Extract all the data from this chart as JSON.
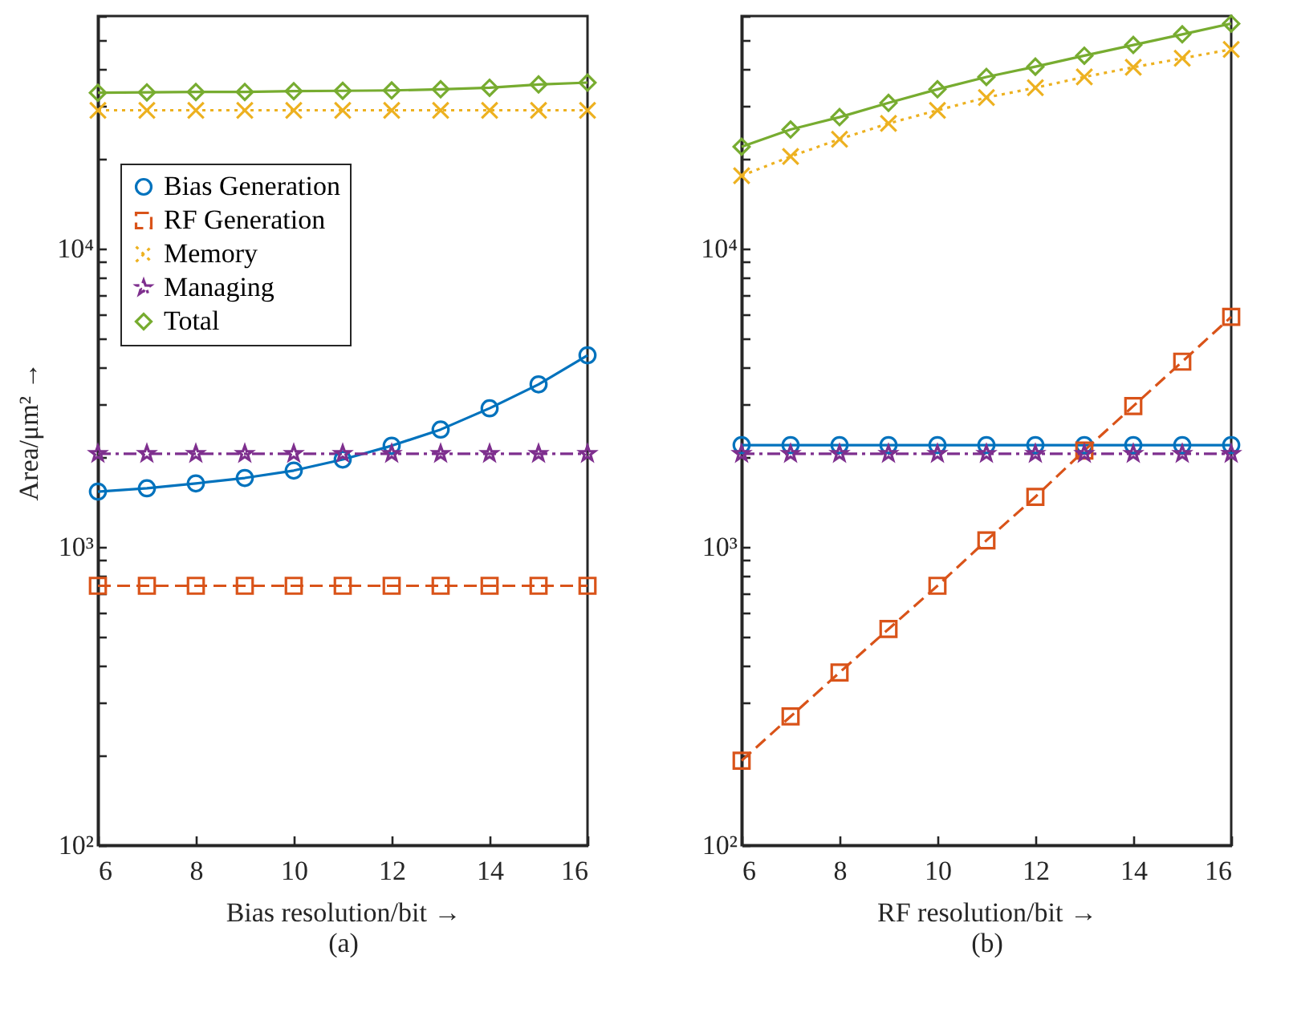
{
  "chart_data": [
    {
      "type": "line",
      "xlabel": "Bias resolution/bit →",
      "ylabel": "Area/μm² →",
      "annotations": [
        "(a)"
      ],
      "log": "y",
      "legend": "top left",
      "grid": false,
      "x": [
        6,
        7,
        8,
        9,
        10,
        11,
        12,
        13,
        14,
        15,
        16
      ],
      "xlim": [
        6,
        16
      ],
      "xticks": [
        6,
        8,
        10,
        12,
        14,
        16
      ],
      "ylim": [
        100,
        60000
      ],
      "yticks": [
        {
          "value": 100,
          "label": "10²"
        },
        {
          "value": 200,
          "label": null
        },
        {
          "value": 300,
          "label": null
        },
        {
          "value": 400,
          "label": null
        },
        {
          "value": 500,
          "label": null
        },
        {
          "value": 600,
          "label": null
        },
        {
          "value": 700,
          "label": null
        },
        {
          "value": 800,
          "label": null
        },
        {
          "value": 900,
          "label": null
        },
        {
          "value": 1000,
          "label": "10³"
        },
        {
          "value": 2000,
          "label": null
        },
        {
          "value": 3000,
          "label": null
        },
        {
          "value": 4000,
          "label": null
        },
        {
          "value": 5000,
          "label": null
        },
        {
          "value": 6000,
          "label": null
        },
        {
          "value": 7000,
          "label": null
        },
        {
          "value": 8000,
          "label": null
        },
        {
          "value": 9000,
          "label": null
        },
        {
          "value": 10000,
          "label": "10⁴"
        },
        {
          "value": 20000,
          "label": null
        },
        {
          "value": 30000,
          "label": null
        },
        {
          "value": 40000,
          "label": null
        },
        {
          "value": 50000,
          "label": null
        },
        {
          "value": 60000,
          "label": null
        }
      ],
      "series": [
        {
          "name": "Bias Generation",
          "color": "#0072bd",
          "marker": "circle",
          "line_style": "solid",
          "values": [
            1530,
            1570,
            1630,
            1700,
            1800,
            1960,
            2180,
            2470,
            2910,
            3500,
            4380
          ]
        },
        {
          "name": "RF Generation",
          "color": "#d95319",
          "marker": "square",
          "line_style": "dashed",
          "values": [
            740,
            740,
            740,
            740,
            740,
            740,
            740,
            740,
            740,
            740,
            740
          ]
        },
        {
          "name": "Memory",
          "color": "#edb120",
          "marker": "cross",
          "line_style": "dotted",
          "values": [
            29000,
            29000,
            29000,
            29000,
            29000,
            29000,
            29000,
            29000,
            29000,
            29000,
            29000
          ]
        },
        {
          "name": "Managing",
          "color": "#7e2f8e",
          "marker": "star",
          "line_style": "dashdot",
          "values": [
            2050,
            2050,
            2050,
            2050,
            2050,
            2050,
            2050,
            2050,
            2050,
            2050,
            2050
          ]
        },
        {
          "name": "Total",
          "color": "#77ac30",
          "marker": "diamond",
          "line_style": "solid",
          "values": [
            33200,
            33300,
            33400,
            33400,
            33600,
            33700,
            33800,
            34100,
            34500,
            35400,
            35900
          ]
        }
      ]
    },
    {
      "type": "line",
      "xlabel": "RF resolution/bit →",
      "annotations": [
        "(b)"
      ],
      "log": "y",
      "grid": false,
      "x": [
        6,
        7,
        8,
        9,
        10,
        11,
        12,
        13,
        14,
        15,
        16
      ],
      "xlim": [
        6,
        16
      ],
      "xticks": [
        6,
        8,
        10,
        12,
        14,
        16
      ],
      "ylim": [
        100,
        60000
      ],
      "yticks": [
        {
          "value": 100,
          "label": "10²"
        },
        {
          "value": 200,
          "label": null
        },
        {
          "value": 300,
          "label": null
        },
        {
          "value": 400,
          "label": null
        },
        {
          "value": 500,
          "label": null
        },
        {
          "value": 600,
          "label": null
        },
        {
          "value": 700,
          "label": null
        },
        {
          "value": 800,
          "label": null
        },
        {
          "value": 900,
          "label": null
        },
        {
          "value": 1000,
          "label": "10³"
        },
        {
          "value": 2000,
          "label": null
        },
        {
          "value": 3000,
          "label": null
        },
        {
          "value": 4000,
          "label": null
        },
        {
          "value": 5000,
          "label": null
        },
        {
          "value": 6000,
          "label": null
        },
        {
          "value": 7000,
          "label": null
        },
        {
          "value": 8000,
          "label": null
        },
        {
          "value": 9000,
          "label": null
        },
        {
          "value": 10000,
          "label": "10⁴"
        },
        {
          "value": 20000,
          "label": null
        },
        {
          "value": 30000,
          "label": null
        },
        {
          "value": 40000,
          "label": null
        },
        {
          "value": 50000,
          "label": null
        },
        {
          "value": 60000,
          "label": null
        }
      ],
      "series": [
        {
          "color": "#0072bd",
          "marker": "circle",
          "line_style": "solid",
          "values": [
            2190,
            2190,
            2190,
            2190,
            2190,
            2190,
            2190,
            2190,
            2190,
            2190,
            2190
          ]
        },
        {
          "color": "#d95319",
          "marker": "square",
          "line_style": "dashed",
          "values": [
            192,
            270,
            379,
            530,
            740,
            1050,
            1470,
            2100,
            2960,
            4170,
            5890
          ]
        },
        {
          "color": "#edb120",
          "marker": "cross",
          "line_style": "dotted",
          "values": [
            17500,
            20300,
            23200,
            26200,
            29000,
            32000,
            34500,
            37500,
            40400,
            43300,
            46400
          ]
        },
        {
          "color": "#7e2f8e",
          "marker": "star",
          "line_style": "dashdot",
          "values": [
            2050,
            2050,
            2050,
            2050,
            2050,
            2050,
            2050,
            2050,
            2050,
            2050,
            2050
          ]
        },
        {
          "color": "#77ac30",
          "marker": "diamond",
          "line_style": "solid",
          "values": [
            21900,
            25000,
            27500,
            30700,
            34100,
            37500,
            40600,
            44200,
            48000,
            52100,
            56600
          ]
        }
      ]
    }
  ]
}
